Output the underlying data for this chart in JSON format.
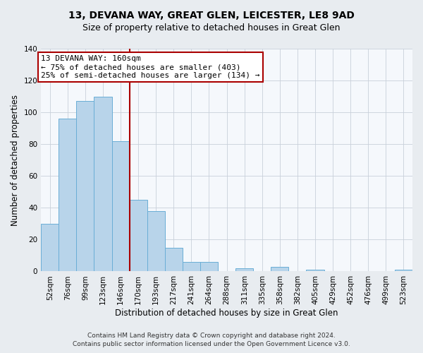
{
  "title": "13, DEVANA WAY, GREAT GLEN, LEICESTER, LE8 9AD",
  "subtitle": "Size of property relative to detached houses in Great Glen",
  "xlabel": "Distribution of detached houses by size in Great Glen",
  "ylabel": "Number of detached properties",
  "bar_labels": [
    "52sqm",
    "76sqm",
    "99sqm",
    "123sqm",
    "146sqm",
    "170sqm",
    "193sqm",
    "217sqm",
    "241sqm",
    "264sqm",
    "288sqm",
    "311sqm",
    "335sqm",
    "358sqm",
    "382sqm",
    "405sqm",
    "429sqm",
    "452sqm",
    "476sqm",
    "499sqm",
    "523sqm"
  ],
  "bar_values": [
    30,
    96,
    107,
    110,
    82,
    45,
    38,
    15,
    6,
    6,
    0,
    2,
    0,
    3,
    0,
    1,
    0,
    0,
    0,
    0,
    1
  ],
  "bar_color": "#b8d4ea",
  "bar_edge_color": "#6aaed6",
  "vline_color": "#aa0000",
  "annotation_line1": "13 DEVANA WAY: 160sqm",
  "annotation_line2": "← 75% of detached houses are smaller (403)",
  "annotation_line3": "25% of semi-detached houses are larger (134) →",
  "annotation_box_facecolor": "#ffffff",
  "annotation_box_edgecolor": "#aa0000",
  "ylim": [
    0,
    140
  ],
  "yticks": [
    0,
    20,
    40,
    60,
    80,
    100,
    120,
    140
  ],
  "footer1": "Contains HM Land Registry data © Crown copyright and database right 2024.",
  "footer2": "Contains public sector information licensed under the Open Government Licence v3.0.",
  "bg_color": "#e8ecf0",
  "plot_bg_color": "#f5f8fc",
  "grid_color": "#c8d0da",
  "title_fontsize": 10,
  "subtitle_fontsize": 9,
  "axis_label_fontsize": 8.5,
  "tick_fontsize": 7.5,
  "annotation_fontsize": 8,
  "footer_fontsize": 6.5
}
